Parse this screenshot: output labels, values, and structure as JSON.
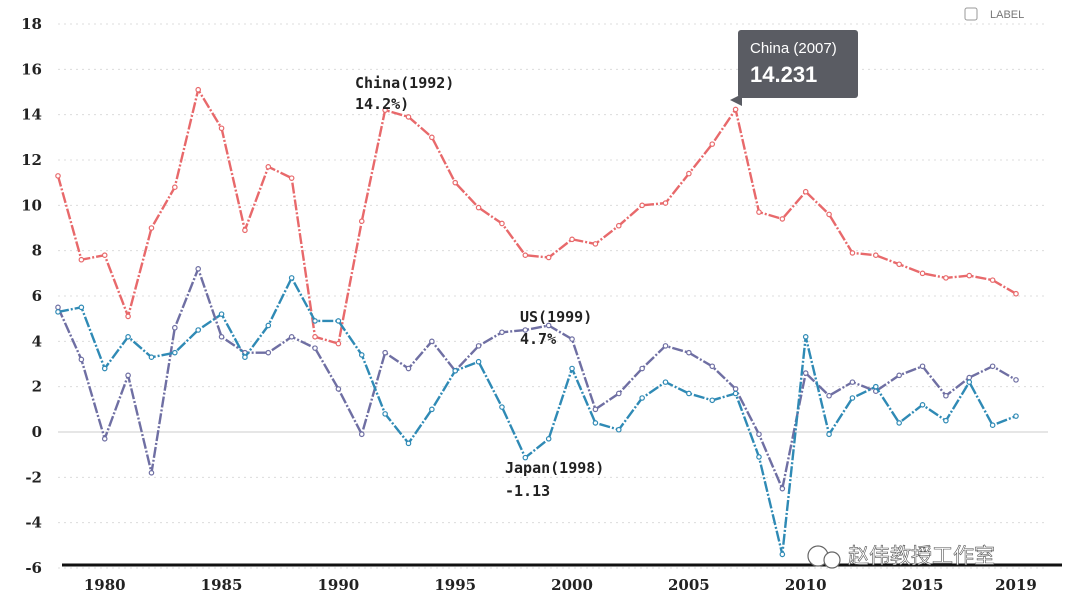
{
  "chart_data": {
    "type": "line",
    "x": [
      1978,
      1979,
      1980,
      1981,
      1982,
      1983,
      1984,
      1985,
      1986,
      1987,
      1988,
      1989,
      1990,
      1991,
      1992,
      1993,
      1994,
      1995,
      1996,
      1997,
      1998,
      1999,
      2000,
      2001,
      2002,
      2003,
      2004,
      2005,
      2006,
      2007,
      2008,
      2009,
      2010,
      2011,
      2012,
      2013,
      2014,
      2015,
      2016,
      2017,
      2018,
      2019
    ],
    "series": [
      {
        "name": "China",
        "color": "#e8696b",
        "values": [
          11.3,
          7.6,
          7.8,
          5.1,
          9.0,
          10.8,
          15.1,
          13.4,
          8.9,
          11.7,
          11.2,
          4.2,
          3.9,
          9.3,
          14.2,
          13.9,
          13.0,
          11.0,
          9.9,
          9.2,
          7.8,
          7.7,
          8.5,
          8.3,
          9.1,
          10.0,
          10.1,
          11.4,
          12.7,
          14.231,
          9.7,
          9.4,
          10.6,
          9.6,
          7.9,
          7.8,
          7.4,
          7.0,
          6.8,
          6.9,
          6.7,
          6.1
        ]
      },
      {
        "name": "US",
        "color": "#6f6fa3",
        "values": [
          5.5,
          3.2,
          -0.3,
          2.5,
          -1.8,
          4.6,
          7.2,
          4.2,
          3.5,
          3.5,
          4.2,
          3.7,
          1.9,
          -0.1,
          3.5,
          2.8,
          4.0,
          2.7,
          3.8,
          4.4,
          4.5,
          4.7,
          4.1,
          1.0,
          1.7,
          2.8,
          3.8,
          3.5,
          2.9,
          1.9,
          -0.1,
          -2.5,
          2.6,
          1.6,
          2.2,
          1.8,
          2.5,
          2.9,
          1.6,
          2.4,
          2.9,
          2.3
        ]
      },
      {
        "name": "Japan",
        "color": "#2f8ab5",
        "values": [
          5.3,
          5.5,
          2.8,
          4.2,
          3.3,
          3.5,
          4.5,
          5.2,
          3.3,
          4.7,
          6.8,
          4.9,
          4.9,
          3.4,
          0.8,
          -0.5,
          1.0,
          2.7,
          3.1,
          1.1,
          -1.13,
          -0.3,
          2.8,
          0.4,
          0.1,
          1.5,
          2.2,
          1.7,
          1.4,
          1.7,
          -1.1,
          -5.4,
          4.2,
          -0.1,
          1.5,
          2.0,
          0.4,
          1.2,
          0.5,
          2.2,
          0.3,
          0.7
        ]
      }
    ],
    "ylim": [
      -6,
      18
    ],
    "yticks": [
      "-6",
      "-4",
      "-2",
      "0",
      "2",
      "4",
      "6",
      "8",
      "10",
      "12",
      "14",
      "16",
      "18"
    ],
    "xticks": [
      "1980",
      "1985",
      "1990",
      "1995",
      "2000",
      "2005",
      "2010",
      "2015",
      "2019"
    ],
    "xlim": [
      1978,
      2019
    ],
    "grid": true,
    "annotations": [
      {
        "line1": "China(1992)",
        "line2": "14.2%)"
      },
      {
        "line1": "US(1999)",
        "line2": "4.7%"
      },
      {
        "line1": "Japan(1998)",
        "line2": "-1.13"
      }
    ],
    "tooltip": {
      "label": "China (2007)",
      "value": "14.231"
    },
    "legend_partial": "LABEL"
  },
  "watermark": "赵伟教授工作室"
}
